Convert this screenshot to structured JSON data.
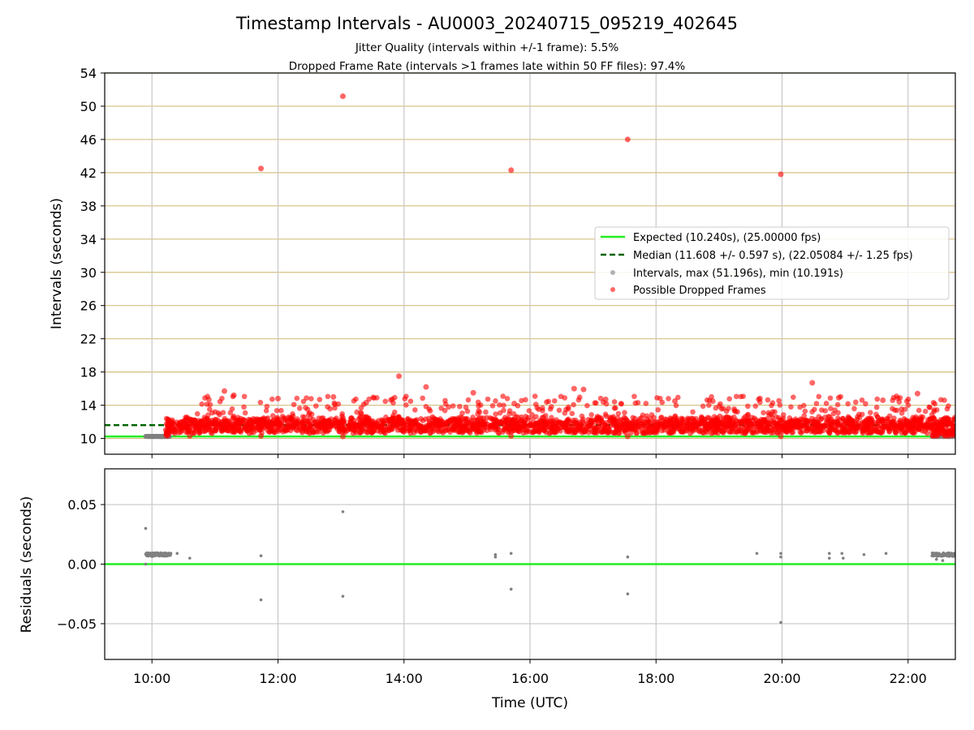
{
  "chart_data": {
    "type": "scatter",
    "title": "Timestamp Intervals - AU0003_20240715_095219_402645",
    "subtitle_lines": [
      "Jitter Quality (intervals within +/-1 frame): 5.5%",
      "Dropped Frame Rate (intervals >1 frames late within 50 FF files): 97.4%"
    ],
    "xlabel": "Time (UTC)",
    "xlim_hours": [
      9.25,
      22.75
    ],
    "xticks": [
      {
        "value": 10,
        "label": "10:00"
      },
      {
        "value": 12,
        "label": "12:00"
      },
      {
        "value": 14,
        "label": "14:00"
      },
      {
        "value": 16,
        "label": "16:00"
      },
      {
        "value": 18,
        "label": "18:00"
      },
      {
        "value": 20,
        "label": "20:00"
      },
      {
        "value": 22,
        "label": "22:00"
      }
    ],
    "top_panel": {
      "ylabel": "Intervals (seconds)",
      "ylim": [
        8.1,
        54
      ],
      "yticks": [
        "10",
        "14",
        "18",
        "22",
        "26",
        "30",
        "34",
        "38",
        "42",
        "46",
        "50",
        "54"
      ],
      "expected_interval": 10.24,
      "median_interval": 11.608,
      "grid": true,
      "legend_position": "center-right",
      "legend": [
        "Expected (10.240s), (25.00000 fps)",
        "Median (11.608 +/- 0.597 s), (22.05084 +/- 1.25 fps)",
        "Intervals, max (51.196s), min (10.191s)",
        "Possible Dropped Frames"
      ],
      "gray_interval_runs": [
        {
          "start": 9.9,
          "end": 10.28,
          "value": 10.24
        },
        {
          "start": 22.38,
          "end": 22.75,
          "value": 10.24
        }
      ],
      "dropped_dense_band": {
        "start": 10.22,
        "end": 22.75,
        "typical_low": 10.6,
        "typical_high": 12.8
      },
      "dropped_outliers": [
        {
          "x": 11.73,
          "y": 42.5
        },
        {
          "x": 13.03,
          "y": 51.2
        },
        {
          "x": 15.7,
          "y": 42.3
        },
        {
          "x": 17.55,
          "y": 46.0
        },
        {
          "x": 19.98,
          "y": 41.8
        },
        {
          "x": 13.92,
          "y": 17.5
        },
        {
          "x": 20.48,
          "y": 16.7
        },
        {
          "x": 11.15,
          "y": 15.7
        },
        {
          "x": 16.7,
          "y": 16.0
        },
        {
          "x": 14.35,
          "y": 16.2
        },
        {
          "x": 22.15,
          "y": 15.4
        },
        {
          "x": 15.1,
          "y": 15.5
        },
        {
          "x": 11.3,
          "y": 15.2
        },
        {
          "x": 12.88,
          "y": 15.0
        },
        {
          "x": 16.85,
          "y": 15.9
        },
        {
          "x": 12.0,
          "y": 14.8
        },
        {
          "x": 19.65,
          "y": 14.8
        },
        {
          "x": 20.9,
          "y": 14.9
        },
        {
          "x": 21.6,
          "y": 14.6
        },
        {
          "x": 18.3,
          "y": 14.5
        },
        {
          "x": 13.4,
          "y": 14.3
        },
        {
          "x": 17.2,
          "y": 14.7
        },
        {
          "x": 15.75,
          "y": 14.2
        },
        {
          "x": 18.9,
          "y": 14.5
        },
        {
          "x": 10.6,
          "y": 10.3
        },
        {
          "x": 11.73,
          "y": 10.3
        },
        {
          "x": 13.03,
          "y": 10.25
        },
        {
          "x": 15.7,
          "y": 10.3
        },
        {
          "x": 17.55,
          "y": 10.25
        },
        {
          "x": 19.98,
          "y": 10.25
        }
      ]
    },
    "bottom_panel": {
      "ylabel": "Residuals (seconds)",
      "ylim": [
        -0.08,
        0.08
      ],
      "yticks": [
        {
          "value": 0.05,
          "label": "0.05"
        },
        {
          "value": 0.0,
          "label": "0.00"
        },
        {
          "value": -0.05,
          "label": "−0.05"
        }
      ],
      "zero_line": 0.0,
      "residual_clusters": [
        {
          "start": 9.9,
          "end": 10.3,
          "value": 0.008
        },
        {
          "start": 22.38,
          "end": 22.75,
          "value": 0.008
        }
      ],
      "residual_points": [
        {
          "x": 9.9,
          "y": 0.03
        },
        {
          "x": 9.9,
          "y": 0.0
        },
        {
          "x": 10.4,
          "y": 0.009
        },
        {
          "x": 10.6,
          "y": 0.005
        },
        {
          "x": 11.73,
          "y": 0.007
        },
        {
          "x": 11.73,
          "y": -0.03
        },
        {
          "x": 13.03,
          "y": 0.044
        },
        {
          "x": 13.03,
          "y": -0.027
        },
        {
          "x": 15.45,
          "y": 0.008
        },
        {
          "x": 15.45,
          "y": 0.006
        },
        {
          "x": 15.7,
          "y": 0.009
        },
        {
          "x": 15.7,
          "y": -0.021
        },
        {
          "x": 17.55,
          "y": 0.006
        },
        {
          "x": 17.55,
          "y": -0.025
        },
        {
          "x": 19.6,
          "y": 0.009
        },
        {
          "x": 19.98,
          "y": 0.009
        },
        {
          "x": 19.98,
          "y": 0.006
        },
        {
          "x": 19.98,
          "y": -0.049
        },
        {
          "x": 20.75,
          "y": 0.009
        },
        {
          "x": 20.75,
          "y": 0.005
        },
        {
          "x": 20.95,
          "y": 0.009
        },
        {
          "x": 20.97,
          "y": 0.005
        },
        {
          "x": 21.3,
          "y": 0.008
        },
        {
          "x": 21.65,
          "y": 0.009
        },
        {
          "x": 22.45,
          "y": 0.004
        },
        {
          "x": 22.55,
          "y": 0.003
        }
      ]
    },
    "colors": {
      "expected_line": "#22ee22",
      "median_line": "#006400",
      "interval_points": "#808080",
      "dropped_points": "#ff0000",
      "h_grid": "#d4c080",
      "v_grid": "#c8c8c8"
    }
  }
}
